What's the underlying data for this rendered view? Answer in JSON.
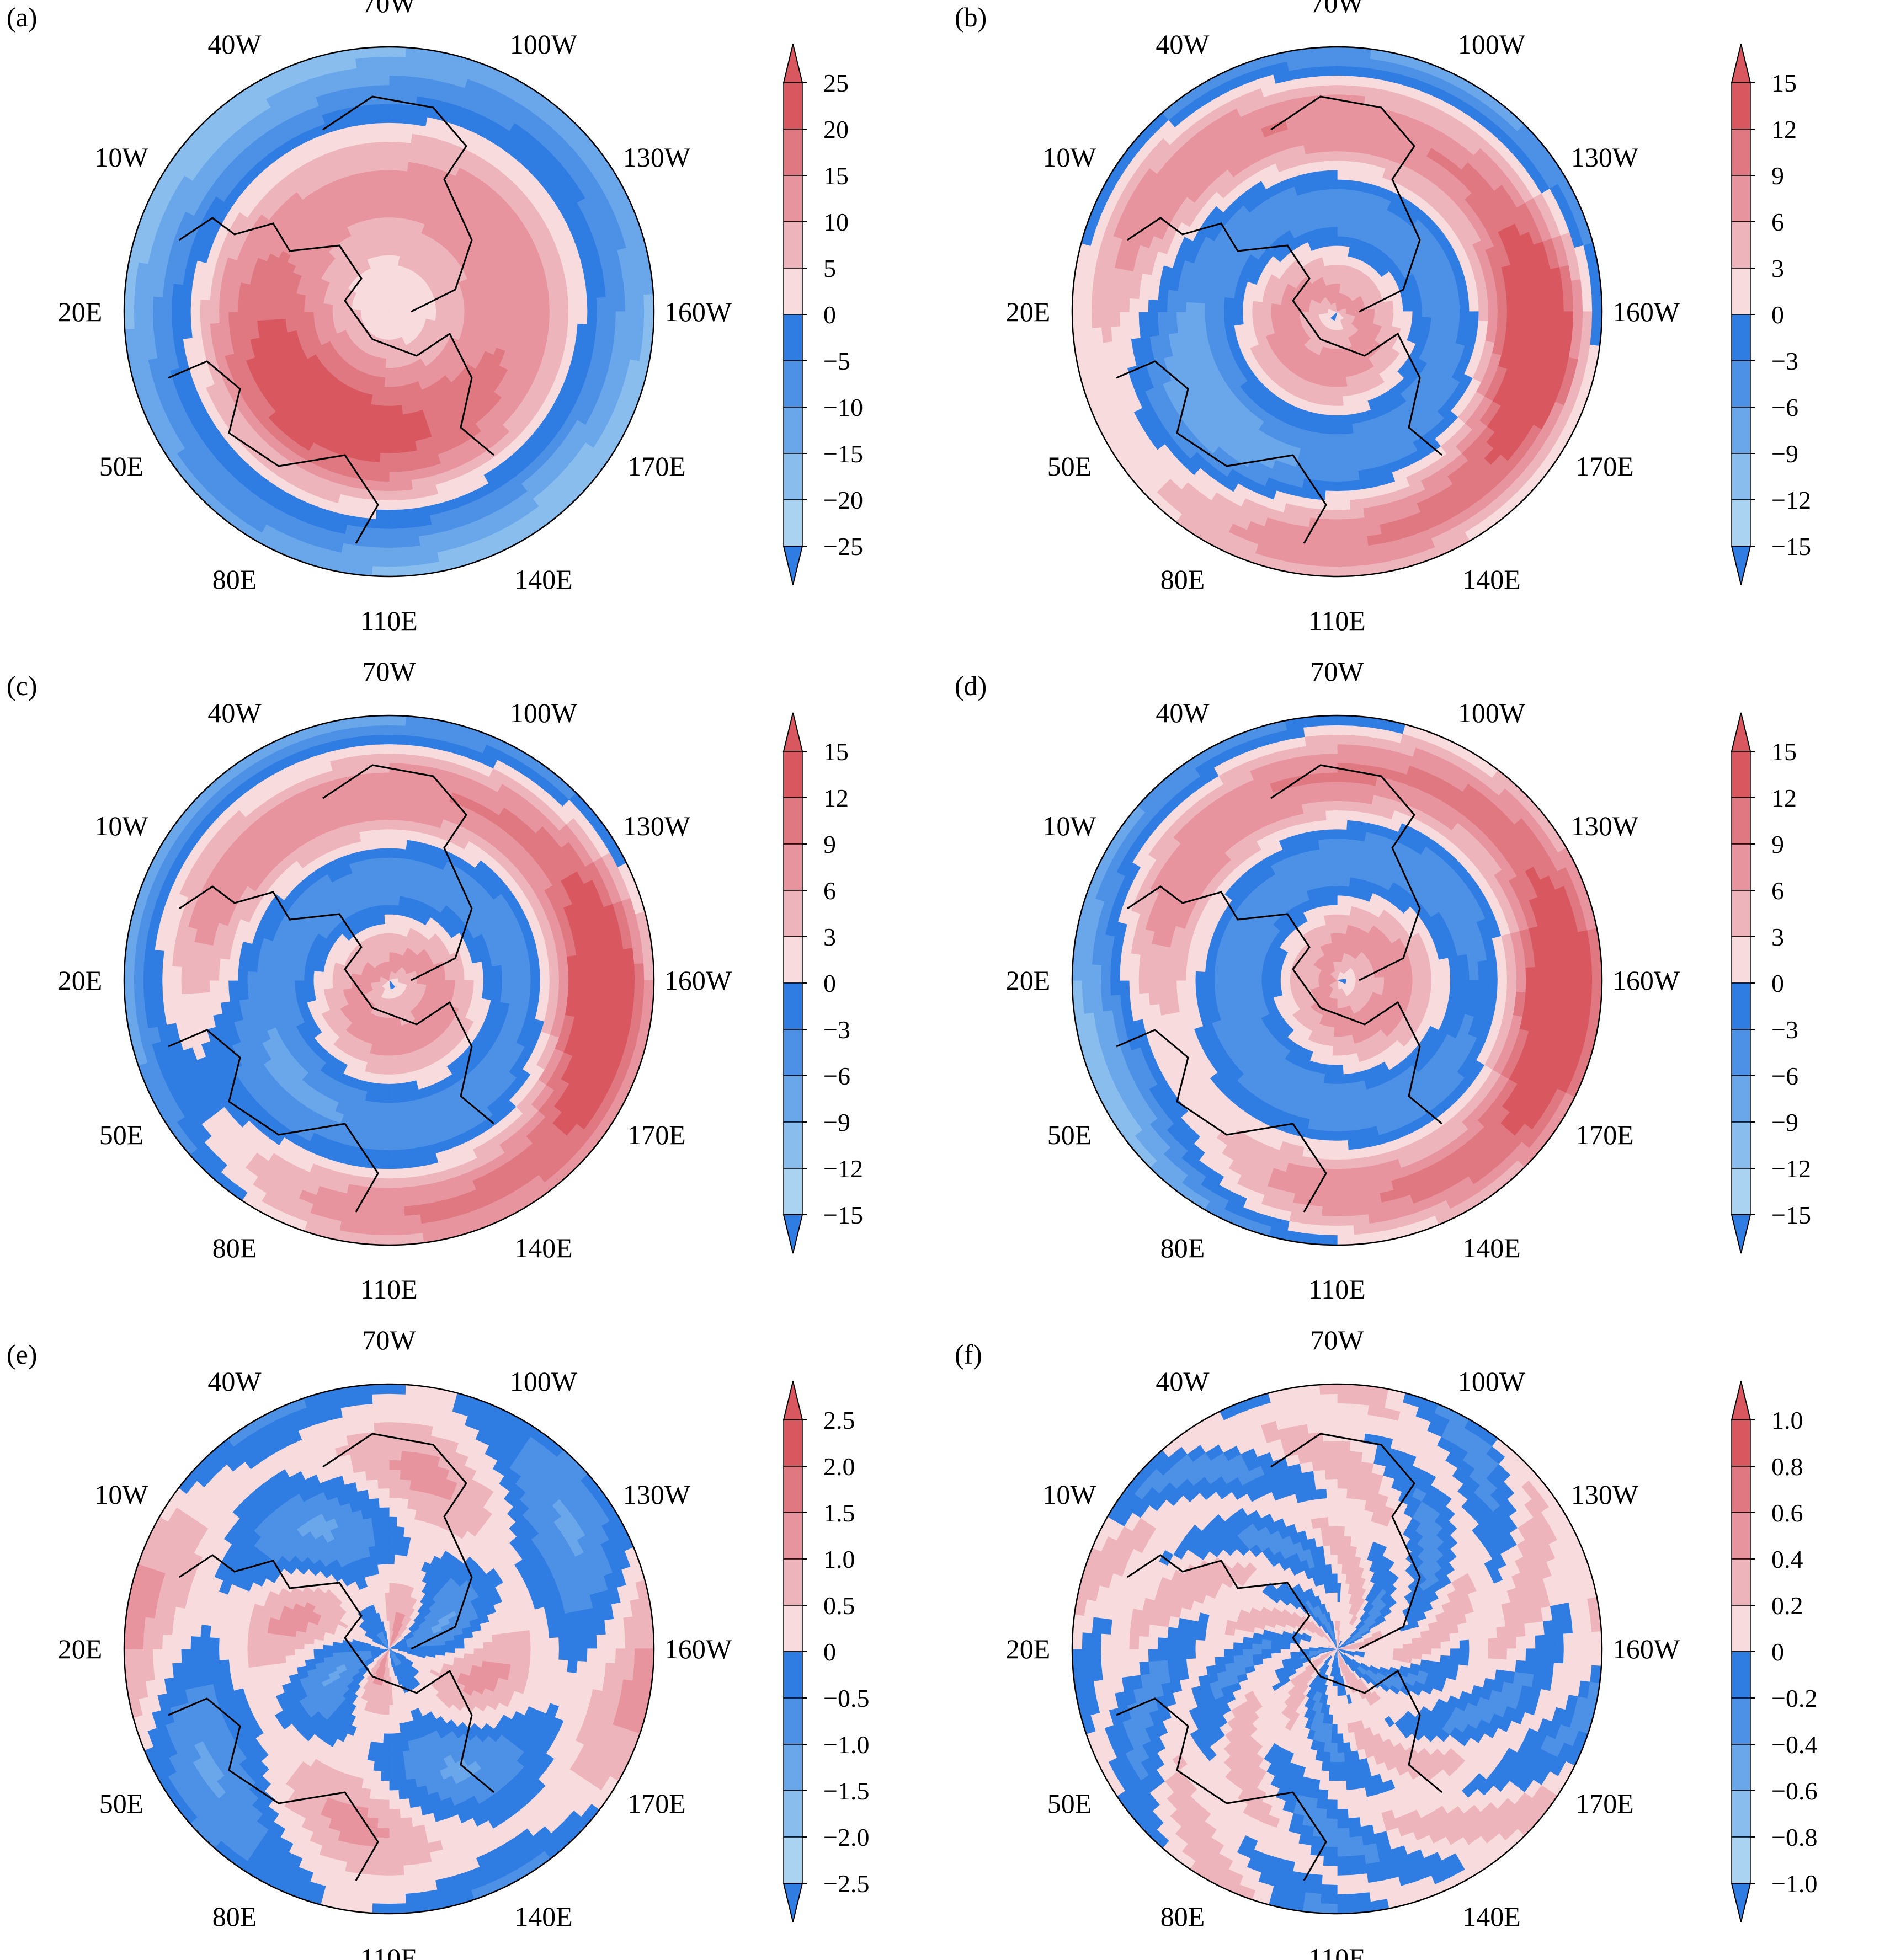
{
  "colors": {
    "neg": [
      "#2f7de2",
      "#4c91e6",
      "#6aa6ea",
      "#88bdee",
      "#a9d3f1"
    ],
    "pos": [
      "#f7dbdd",
      "#eeb4bc",
      "#e7949f",
      "#e07881",
      "#d95860"
    ],
    "land": "#000000"
  },
  "map_labels": [
    "70W",
    "100W",
    "130W",
    "160W",
    "170E",
    "140E",
    "110E",
    "80E",
    "50E",
    "20E",
    "10W",
    "40W"
  ],
  "panels": [
    {
      "letter": "(a)",
      "ticks": [
        "25",
        "20",
        "15",
        "10",
        "5",
        "0",
        "−5",
        "−10",
        "−15",
        "−20",
        "−25"
      ]
    },
    {
      "letter": "(b)",
      "ticks": [
        "15",
        "12",
        "9",
        "6",
        "3",
        "0",
        "−3",
        "−6",
        "−9",
        "−12",
        "−15"
      ]
    },
    {
      "letter": "(c)",
      "ticks": [
        "15",
        "12",
        "9",
        "6",
        "3",
        "0",
        "−3",
        "−6",
        "−9",
        "−12",
        "−15"
      ]
    },
    {
      "letter": "(d)",
      "ticks": [
        "15",
        "12",
        "9",
        "6",
        "3",
        "0",
        "−3",
        "−6",
        "−9",
        "−12",
        "−15"
      ]
    },
    {
      "letter": "(e)",
      "ticks": [
        "2.5",
        "2.0",
        "1.5",
        "1.0",
        "0.5",
        "0",
        "−0.5",
        "−1.0",
        "−1.5",
        "−2.0",
        "−2.5"
      ]
    },
    {
      "letter": "(f)",
      "ticks": [
        "1.0",
        "0.8",
        "0.6",
        "0.4",
        "0.2",
        "0",
        "−0.2",
        "−0.4",
        "−0.6",
        "−0.8",
        "−1.0"
      ]
    }
  ]
}
